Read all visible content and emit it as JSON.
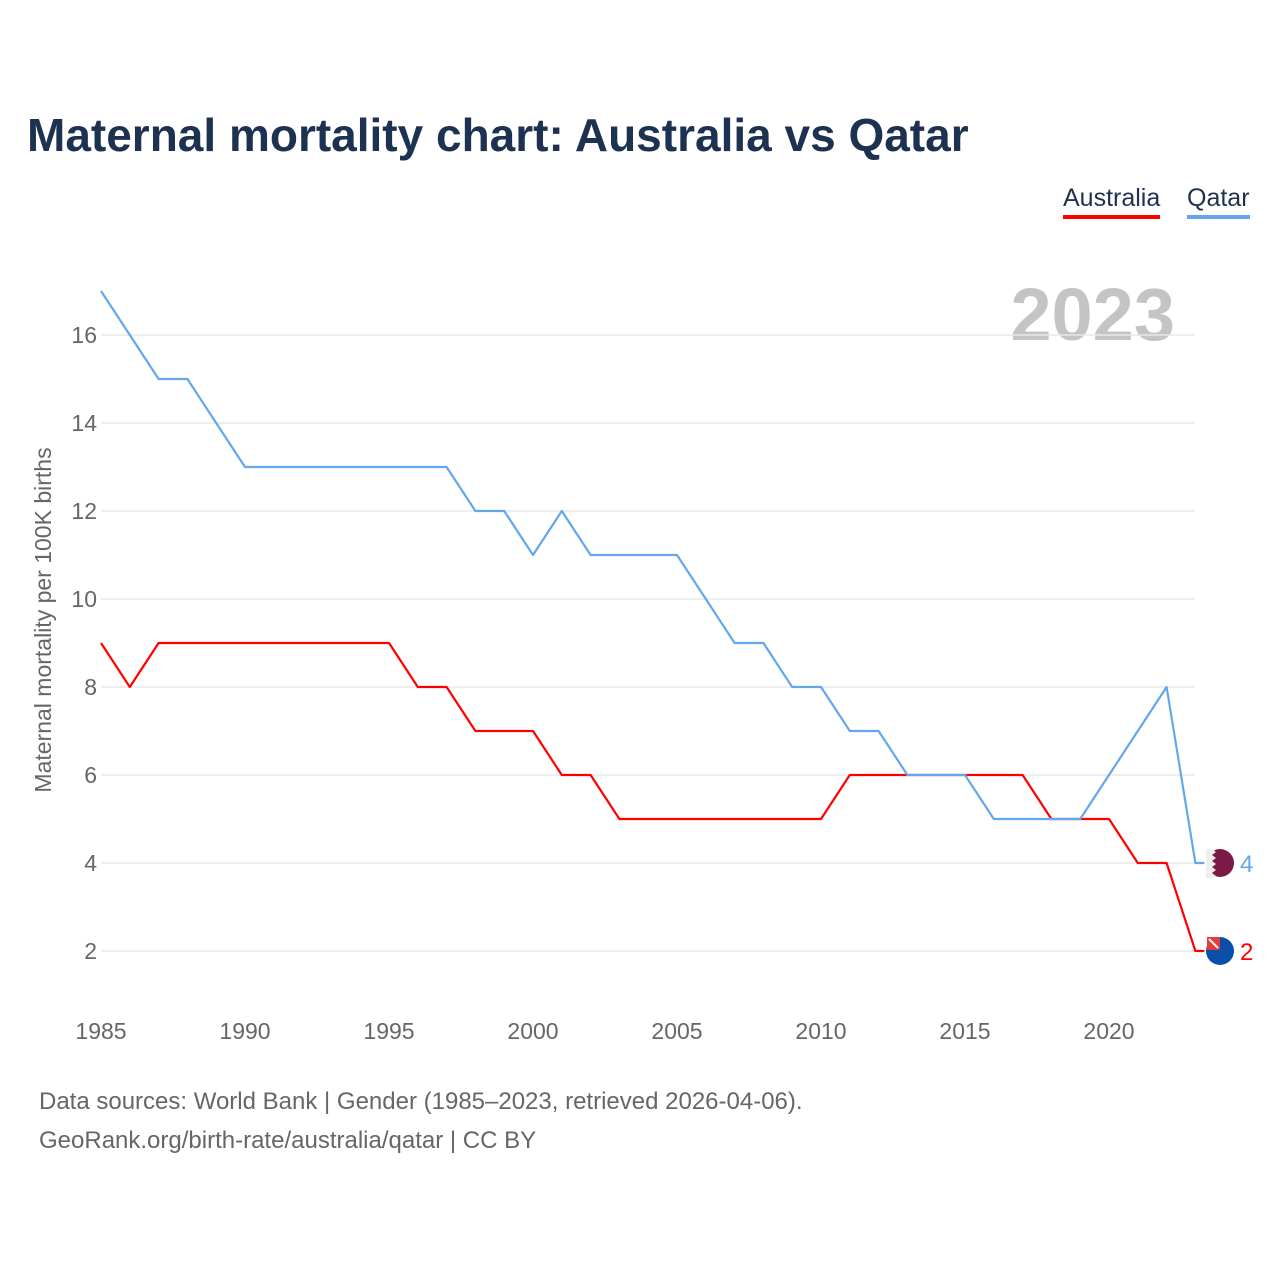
{
  "chart_data": {
    "type": "line",
    "title": "Maternal mortality chart: Australia vs Qatar",
    "ylabel": "Maternal mortality per 100K births",
    "xlabel": "",
    "year_label": "2023",
    "xlim": [
      1985,
      2023
    ],
    "ylim": [
      1,
      17
    ],
    "x_ticks": [
      1985,
      1990,
      1995,
      2000,
      2005,
      2010,
      2015,
      2020
    ],
    "y_ticks": [
      2,
      4,
      6,
      8,
      10,
      12,
      14,
      16
    ],
    "grid": true,
    "legend_placement": "top-right",
    "x": [
      1985,
      1986,
      1987,
      1988,
      1989,
      1990,
      1991,
      1992,
      1993,
      1994,
      1995,
      1996,
      1997,
      1998,
      1999,
      2000,
      2001,
      2002,
      2003,
      2004,
      2005,
      2006,
      2007,
      2008,
      2009,
      2010,
      2011,
      2012,
      2013,
      2014,
      2015,
      2016,
      2017,
      2018,
      2019,
      2020,
      2021,
      2022,
      2023
    ],
    "series": [
      {
        "name": "Australia",
        "color": "#ff0000",
        "end_label": "2",
        "values": [
          9,
          8,
          9,
          9,
          9,
          9,
          9,
          9,
          9,
          9,
          9,
          8,
          8,
          7,
          7,
          7,
          6,
          6,
          5,
          5,
          5,
          5,
          5,
          5,
          5,
          5,
          6,
          6,
          6,
          6,
          6,
          6,
          6,
          5,
          5,
          5,
          4,
          4,
          2
        ]
      },
      {
        "name": "Qatar",
        "color": "#62a8ea",
        "end_label": "4",
        "values": [
          17,
          16,
          15,
          15,
          14,
          13,
          13,
          13,
          13,
          13,
          13,
          13,
          13,
          12,
          12,
          11,
          12,
          11,
          11,
          11,
          11,
          10,
          9,
          9,
          8,
          8,
          7,
          7,
          6,
          6,
          6,
          5,
          5,
          5,
          5,
          6,
          7,
          8,
          4
        ]
      }
    ]
  },
  "footer": {
    "source_line": "Data sources: World Bank | Gender (1985–2023, retrieved 2026-04-06).",
    "credit_line": "GeoRank.org/birth-rate/australia/qatar | CC BY"
  }
}
